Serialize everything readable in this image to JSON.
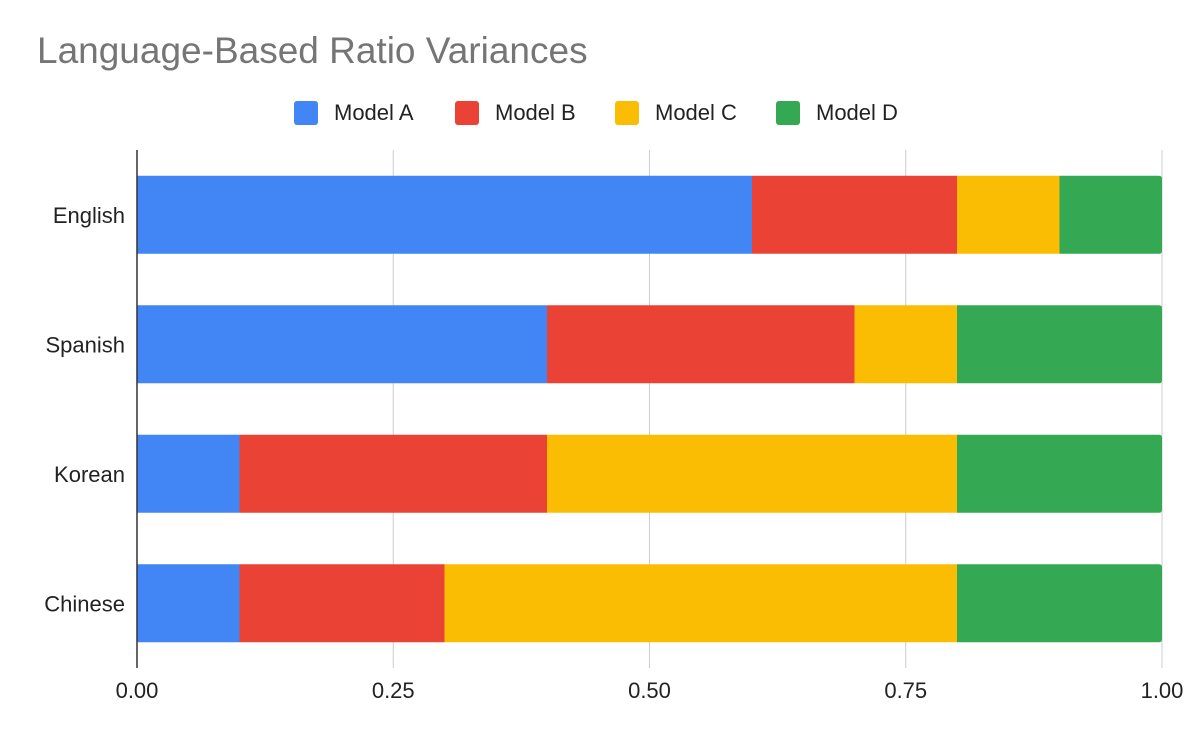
{
  "chart_data": {
    "type": "bar",
    "orientation": "horizontal",
    "stacked": true,
    "title": "Language-Based Ratio Variances",
    "categories": [
      "English",
      "Spanish",
      "Korean",
      "Chinese"
    ],
    "series": [
      {
        "name": "Model A",
        "color": "#4285F4",
        "values": [
          0.6,
          0.4,
          0.1,
          0.1
        ]
      },
      {
        "name": "Model B",
        "color": "#EA4335",
        "values": [
          0.2,
          0.3,
          0.3,
          0.2
        ]
      },
      {
        "name": "Model C",
        "color": "#FBBC04",
        "values": [
          0.1,
          0.1,
          0.4,
          0.5
        ]
      },
      {
        "name": "Model D",
        "color": "#34A853",
        "values": [
          0.1,
          0.2,
          0.2,
          0.2
        ]
      }
    ],
    "x_ticks": [
      "0.00",
      "0.25",
      "0.50",
      "0.75",
      "1.00"
    ],
    "xlim": [
      0,
      1
    ],
    "xlabel": "",
    "ylabel": "",
    "grid": true,
    "legend_position": "top"
  }
}
